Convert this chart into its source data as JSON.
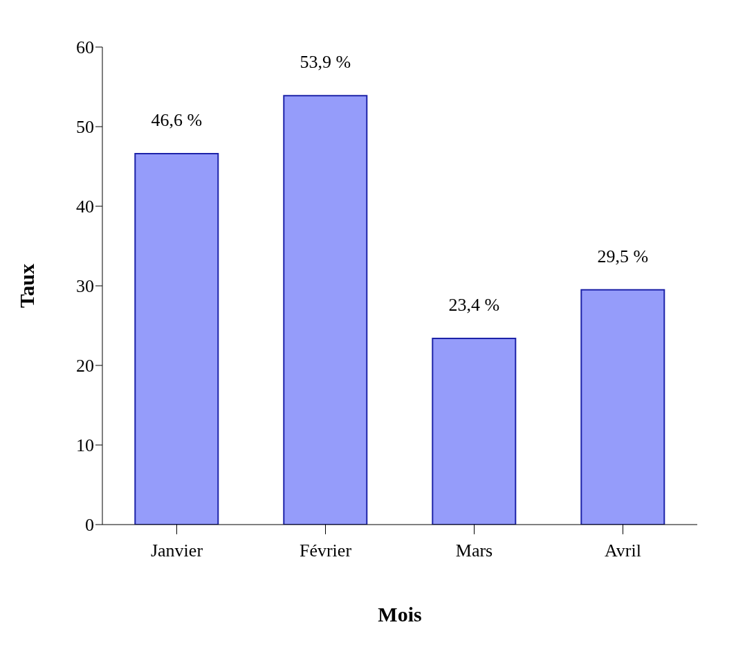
{
  "chart_data": {
    "type": "bar",
    "xlabel": "Mois",
    "ylabel": "Taux",
    "categories": [
      "Janvier",
      "Février",
      "Mars",
      "Avril"
    ],
    "values": [
      46.6,
      53.9,
      23.4,
      29.5
    ],
    "value_labels": [
      "46,6 %",
      "53,9 %",
      "23,4 %",
      "29,5 %"
    ],
    "color": "#959cfa",
    "ylim": [
      0,
      60
    ],
    "yticks": [
      0,
      10,
      20,
      30,
      40,
      50,
      60
    ],
    "grid": false
  }
}
